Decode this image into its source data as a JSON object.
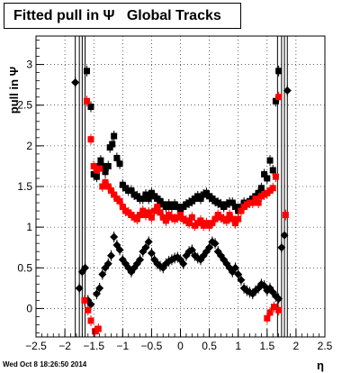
{
  "chart_data": {
    "type": "scatter",
    "title": "Fitted pull in Ψ   Global Tracks",
    "xlabel": "η",
    "ylabel": "pull in Ψ",
    "xlim": [
      -2.5,
      2.5
    ],
    "ylim": [
      -0.35,
      3.35
    ],
    "grid": true,
    "x_ticks": [
      -2.5,
      -2,
      -1.5,
      -1,
      -0.5,
      0,
      0.5,
      1,
      1.5,
      2,
      2.5
    ],
    "x_tick_labels": [
      "−2.5",
      "−2",
      "−1.5",
      "−1",
      "−0.5",
      "0",
      "0.5",
      "1",
      "1.5",
      "2",
      "2.5"
    ],
    "y_ticks": [
      0,
      0.5,
      1,
      1.5,
      2,
      2.5,
      3
    ],
    "y_tick_labels": [
      "0",
      "0.5",
      "1",
      "1.5",
      "2",
      "2.5",
      "3"
    ],
    "series": [
      {
        "marker": "diamond",
        "color": "#000000",
        "points": [
          [
            -1.82,
            2.78
          ],
          [
            -1.75,
            0.25
          ],
          [
            -1.7,
            0.45
          ],
          [
            -1.65,
            0.5
          ],
          [
            -1.6,
            0.1
          ],
          [
            -1.55,
            0.05
          ],
          [
            -1.45,
            0.18
          ],
          [
            -1.4,
            0.25
          ],
          [
            -1.35,
            0.42
          ],
          [
            -1.3,
            0.5
          ],
          [
            -1.25,
            0.55
          ],
          [
            -1.2,
            0.65
          ],
          [
            -1.15,
            0.88
          ],
          [
            -1.1,
            0.78
          ],
          [
            -1.05,
            0.72
          ],
          [
            -1.0,
            0.6
          ],
          [
            -0.95,
            0.55
          ],
          [
            -0.9,
            0.5
          ],
          [
            -0.85,
            0.45
          ],
          [
            -0.8,
            0.5
          ],
          [
            -0.75,
            0.55
          ],
          [
            -0.7,
            0.6
          ],
          [
            -0.65,
            0.7
          ],
          [
            -0.6,
            0.75
          ],
          [
            -0.55,
            0.82
          ],
          [
            -0.5,
            0.68
          ],
          [
            -0.45,
            0.6
          ],
          [
            -0.4,
            0.55
          ],
          [
            -0.35,
            0.52
          ],
          [
            -0.3,
            0.5
          ],
          [
            -0.25,
            0.55
          ],
          [
            -0.2,
            0.58
          ],
          [
            -0.15,
            0.6
          ],
          [
            -0.1,
            0.62
          ],
          [
            -0.05,
            0.63
          ],
          [
            0.0,
            0.6
          ],
          [
            0.05,
            0.55
          ],
          [
            0.1,
            0.65
          ],
          [
            0.15,
            0.7
          ],
          [
            0.2,
            0.72
          ],
          [
            0.25,
            0.65
          ],
          [
            0.3,
            0.62
          ],
          [
            0.35,
            0.6
          ],
          [
            0.4,
            0.65
          ],
          [
            0.45,
            0.7
          ],
          [
            0.5,
            0.75
          ],
          [
            0.55,
            0.82
          ],
          [
            0.6,
            0.8
          ],
          [
            0.65,
            0.7
          ],
          [
            0.7,
            0.65
          ],
          [
            0.75,
            0.6
          ],
          [
            0.8,
            0.55
          ],
          [
            0.85,
            0.5
          ],
          [
            0.9,
            0.45
          ],
          [
            0.95,
            0.5
          ],
          [
            1.0,
            0.42
          ],
          [
            1.05,
            0.35
          ],
          [
            1.1,
            0.25
          ],
          [
            1.15,
            0.22
          ],
          [
            1.2,
            0.2
          ],
          [
            1.25,
            0.18
          ],
          [
            1.3,
            0.22
          ],
          [
            1.35,
            0.25
          ],
          [
            1.4,
            0.3
          ],
          [
            1.45,
            0.28
          ],
          [
            1.5,
            0.22
          ],
          [
            1.55,
            0.25
          ],
          [
            1.6,
            0.2
          ],
          [
            1.65,
            0.15
          ],
          [
            1.7,
            0.12
          ],
          [
            1.75,
            0.75
          ],
          [
            1.8,
            0.9
          ],
          [
            1.85,
            2.68
          ]
        ]
      },
      {
        "marker": "square",
        "color": "#000000",
        "points": [
          [
            -1.62,
            2.92
          ],
          [
            -1.55,
            2.48
          ],
          [
            -1.5,
            1.65
          ],
          [
            -1.45,
            1.62
          ],
          [
            -1.42,
            1.75
          ],
          [
            -1.38,
            1.82
          ],
          [
            -1.35,
            1.75
          ],
          [
            -1.3,
            1.68
          ],
          [
            -1.25,
            1.75
          ],
          [
            -1.22,
            1.98
          ],
          [
            -1.18,
            2.02
          ],
          [
            -1.15,
            2.12
          ],
          [
            -1.1,
            1.85
          ],
          [
            -1.05,
            1.78
          ],
          [
            -1.0,
            1.52
          ],
          [
            -0.95,
            1.48
          ],
          [
            -0.9,
            1.45
          ],
          [
            -0.85,
            1.45
          ],
          [
            -0.8,
            1.4
          ],
          [
            -0.75,
            1.38
          ],
          [
            -0.7,
            1.35
          ],
          [
            -0.65,
            1.35
          ],
          [
            -0.6,
            1.4
          ],
          [
            -0.55,
            1.35
          ],
          [
            -0.5,
            1.42
          ],
          [
            -0.45,
            1.38
          ],
          [
            -0.4,
            1.35
          ],
          [
            -0.35,
            1.32
          ],
          [
            -0.3,
            1.28
          ],
          [
            -0.25,
            1.25
          ],
          [
            -0.2,
            1.28
          ],
          [
            -0.15,
            1.25
          ],
          [
            -0.1,
            1.28
          ],
          [
            -0.05,
            1.25
          ],
          [
            0.0,
            1.2
          ],
          [
            0.05,
            1.25
          ],
          [
            0.1,
            1.28
          ],
          [
            0.15,
            1.3
          ],
          [
            0.2,
            1.32
          ],
          [
            0.25,
            1.35
          ],
          [
            0.3,
            1.38
          ],
          [
            0.35,
            1.35
          ],
          [
            0.4,
            1.4
          ],
          [
            0.45,
            1.42
          ],
          [
            0.5,
            1.38
          ],
          [
            0.55,
            1.35
          ],
          [
            0.6,
            1.32
          ],
          [
            0.65,
            1.3
          ],
          [
            0.7,
            1.28
          ],
          [
            0.75,
            1.25
          ],
          [
            0.8,
            1.28
          ],
          [
            0.85,
            1.3
          ],
          [
            0.9,
            1.3
          ],
          [
            0.95,
            1.25
          ],
          [
            1.0,
            1.2
          ],
          [
            1.05,
            1.25
          ],
          [
            1.1,
            1.3
          ],
          [
            1.15,
            1.28
          ],
          [
            1.2,
            1.32
          ],
          [
            1.25,
            1.35
          ],
          [
            1.3,
            1.38
          ],
          [
            1.35,
            1.42
          ],
          [
            1.4,
            1.48
          ],
          [
            1.45,
            1.65
          ],
          [
            1.5,
            1.6
          ],
          [
            1.55,
            1.82
          ],
          [
            1.6,
            1.7
          ],
          [
            1.65,
            2.55
          ],
          [
            1.7,
            2.92
          ]
        ]
      },
      {
        "marker": "square",
        "color": "#ff0000",
        "points": [
          [
            -1.62,
            2.55
          ],
          [
            -1.55,
            2.08
          ],
          [
            -1.5,
            1.75
          ],
          [
            -1.45,
            1.7
          ],
          [
            -1.4,
            1.72
          ],
          [
            -1.35,
            1.5
          ],
          [
            -1.3,
            1.55
          ],
          [
            -1.25,
            1.5
          ],
          [
            -1.2,
            1.45
          ],
          [
            -1.15,
            1.4
          ],
          [
            -1.1,
            1.35
          ],
          [
            -1.05,
            1.32
          ],
          [
            -1.0,
            1.25
          ],
          [
            -0.95,
            1.2
          ],
          [
            -0.9,
            1.18
          ],
          [
            -0.85,
            1.15
          ],
          [
            -0.8,
            1.12
          ],
          [
            -0.75,
            1.1
          ],
          [
            -0.7,
            1.15
          ],
          [
            -0.65,
            1.2
          ],
          [
            -0.6,
            1.15
          ],
          [
            -0.55,
            1.18
          ],
          [
            -0.5,
            1.12
          ],
          [
            -0.45,
            1.2
          ],
          [
            -0.4,
            1.25
          ],
          [
            -0.35,
            1.18
          ],
          [
            -0.3,
            1.12
          ],
          [
            -0.25,
            1.08
          ],
          [
            -0.2,
            1.15
          ],
          [
            -0.15,
            1.12
          ],
          [
            -0.1,
            1.1
          ],
          [
            -0.05,
            1.12
          ],
          [
            0.0,
            1.15
          ],
          [
            0.05,
            1.1
          ],
          [
            0.1,
            1.08
          ],
          [
            0.15,
            1.05
          ],
          [
            0.2,
            1.12
          ],
          [
            0.25,
            1.02
          ],
          [
            0.3,
            1.05
          ],
          [
            0.35,
            1.08
          ],
          [
            0.4,
            1.02
          ],
          [
            0.45,
            1.05
          ],
          [
            0.5,
            1.02
          ],
          [
            0.55,
            1.05
          ],
          [
            0.6,
            1.1
          ],
          [
            0.65,
            1.15
          ],
          [
            0.7,
            1.12
          ],
          [
            0.75,
            1.1
          ],
          [
            0.8,
            1.08
          ],
          [
            0.85,
            1.15
          ],
          [
            0.9,
            1.1
          ],
          [
            0.95,
            1.05
          ],
          [
            1.0,
            1.1
          ],
          [
            1.05,
            1.2
          ],
          [
            1.1,
            1.25
          ],
          [
            1.15,
            1.28
          ],
          [
            1.2,
            1.3
          ],
          [
            1.25,
            1.3
          ],
          [
            1.3,
            1.35
          ],
          [
            1.35,
            1.3
          ],
          [
            1.4,
            1.38
          ],
          [
            1.45,
            1.4
          ],
          [
            1.5,
            1.42
          ],
          [
            1.55,
            1.45
          ],
          [
            1.6,
            1.48
          ],
          [
            1.65,
            1.62
          ],
          [
            1.7,
            2.6
          ],
          [
            1.82,
            1.15
          ],
          [
            -1.66,
            0.1
          ],
          [
            -1.6,
            -0.02
          ],
          [
            -1.55,
            -0.15
          ],
          [
            -1.48,
            -0.28
          ],
          [
            -1.42,
            -0.25
          ],
          [
            1.5,
            -0.12
          ],
          [
            1.55,
            -0.05
          ],
          [
            1.62,
            0.02
          ],
          [
            1.7,
            -0.02
          ]
        ]
      }
    ],
    "error_bar_lines_x": [
      -1.82,
      -1.75,
      -1.7,
      -1.65,
      1.68,
      1.75,
      1.8,
      1.85
    ]
  },
  "footer_text": "Wed Oct  8 18:26:50 2014"
}
